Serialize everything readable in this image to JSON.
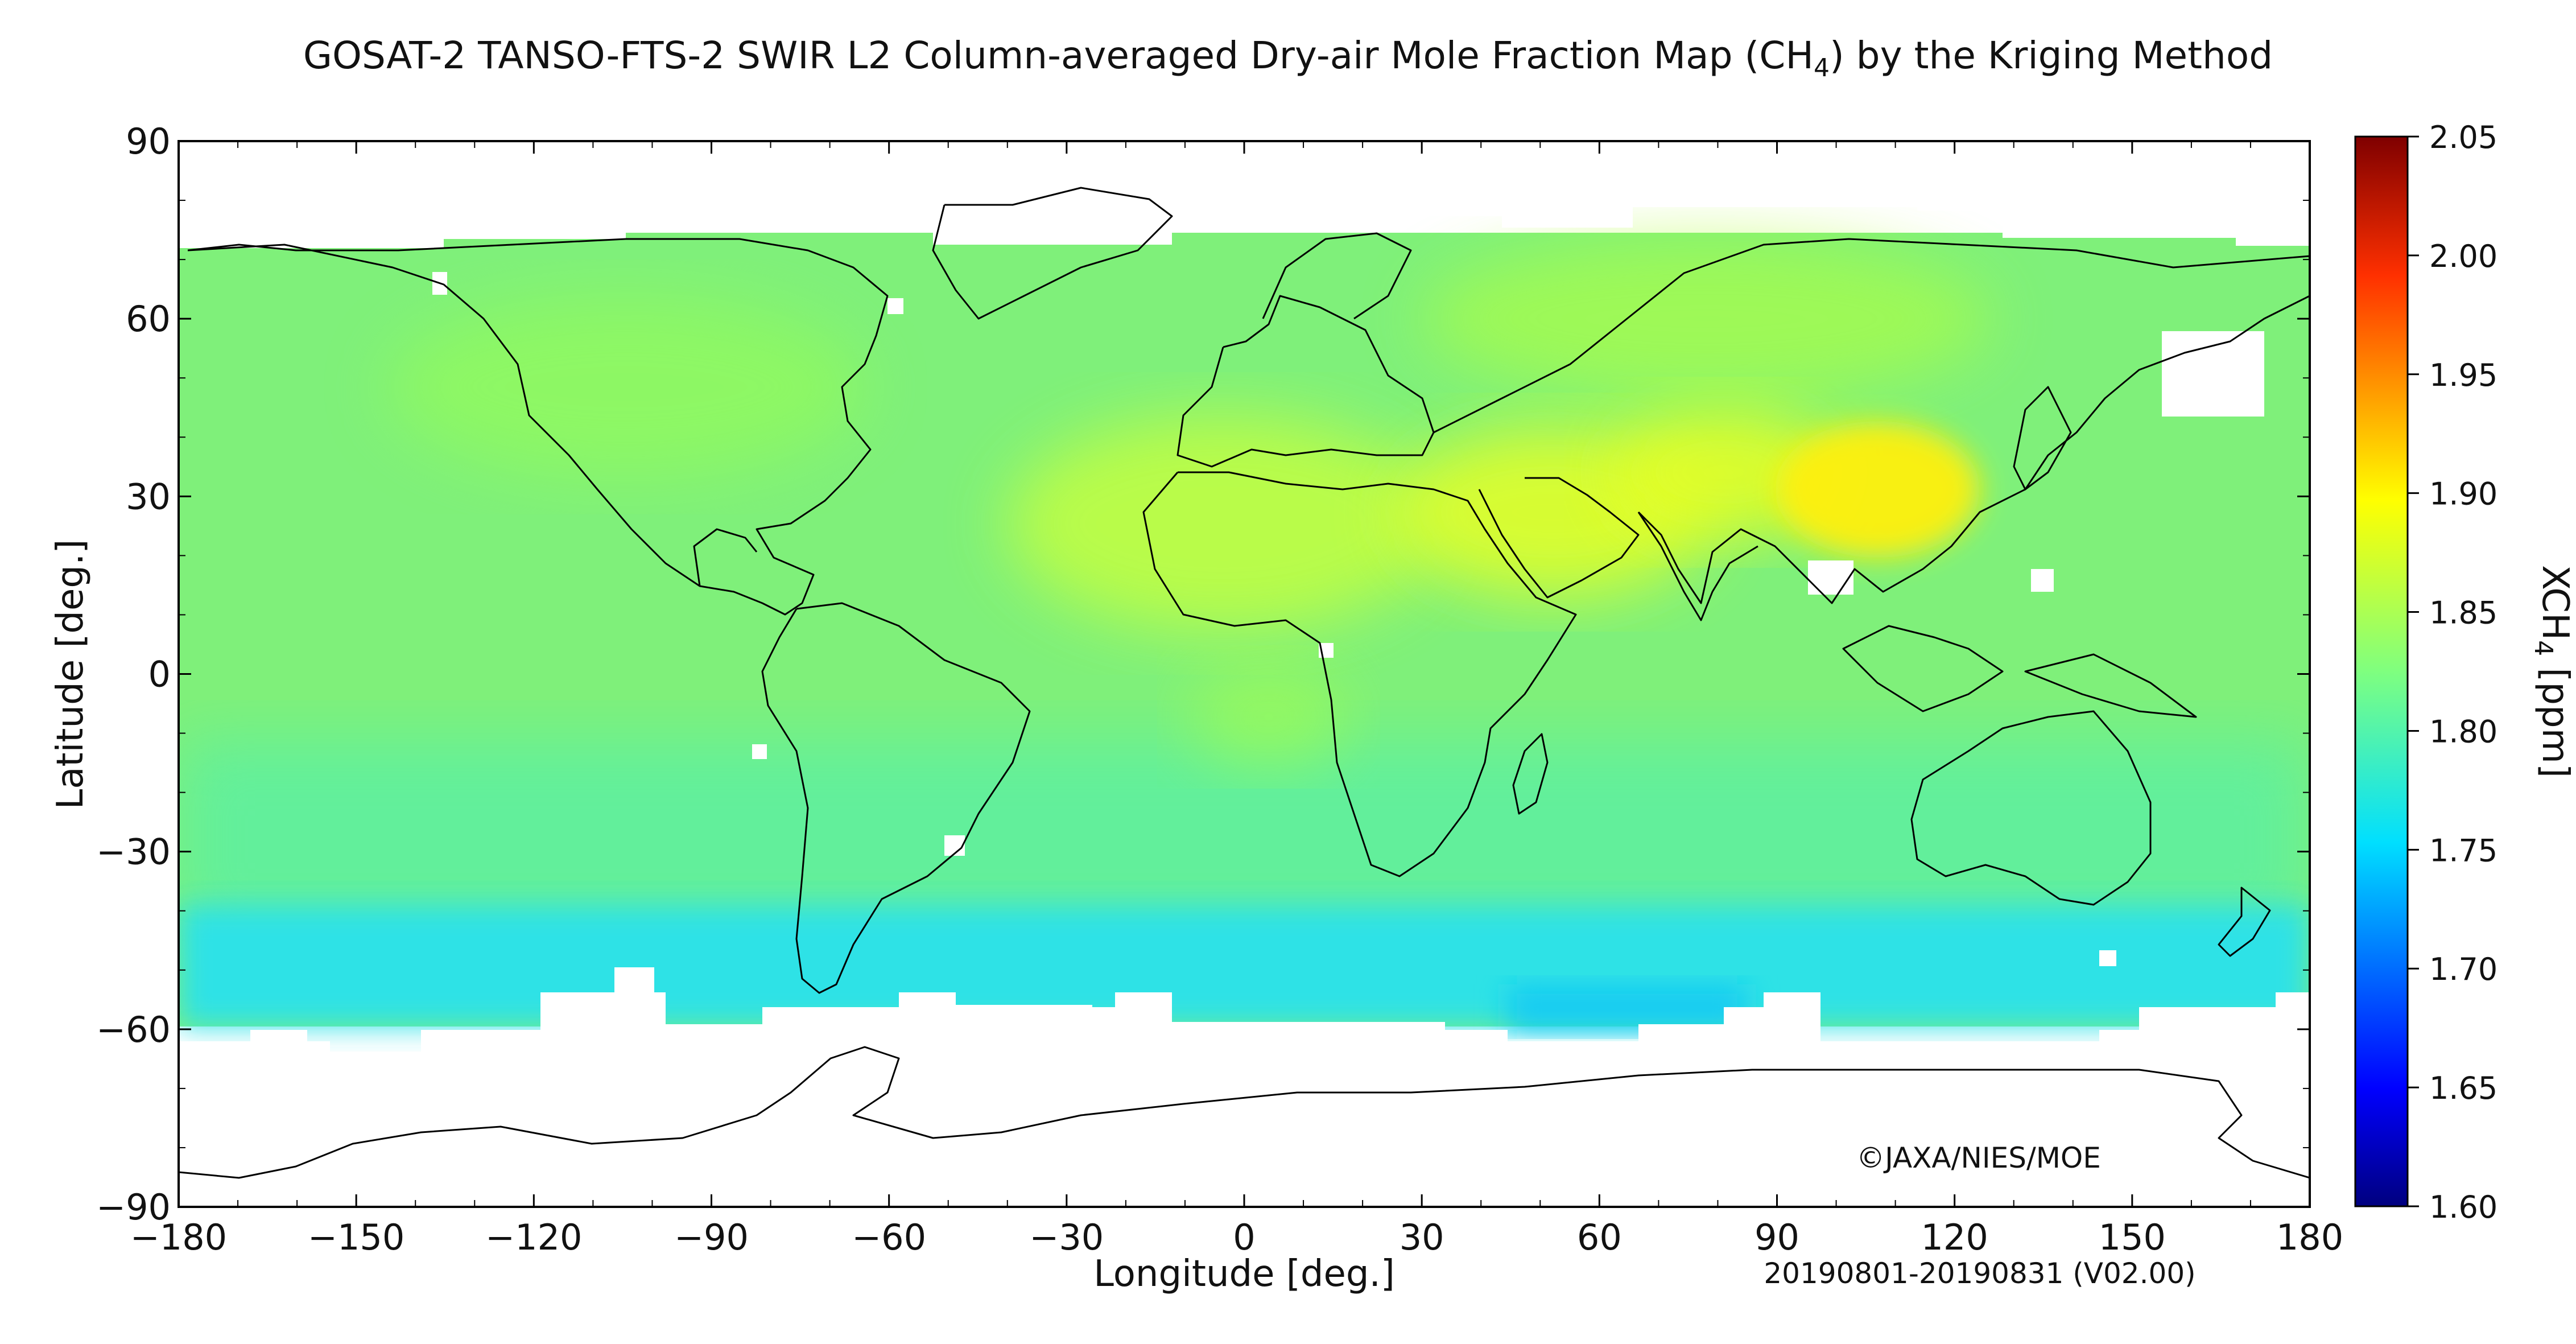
{
  "title": {
    "prefix": "GOSAT-2 TANSO-FTS-2 SWIR L2 Column-averaged Dry-air Mole Fraction Map (CH",
    "subscript": "4",
    "suffix": ") by the Kriging Method"
  },
  "map": {
    "type": "gridded-concentration-map",
    "projection": "equirectangular",
    "xlabel": "Longitude [deg.]",
    "ylabel": "Latitude [deg.]",
    "lon_range": [
      -180,
      180
    ],
    "lat_range": [
      -90,
      90
    ],
    "x_ticks": [
      "−180",
      "−150",
      "−120",
      "−90",
      "−60",
      "−30",
      "0",
      "30",
      "60",
      "90",
      "120",
      "150",
      "180"
    ],
    "y_ticks": [
      "90",
      "60",
      "30",
      "0",
      "−30",
      "−60",
      "−90"
    ],
    "data_coverage_lat": [
      -62,
      72
    ],
    "high_regions": [
      "East Asia",
      "South Asia",
      "Middle East",
      "North Africa"
    ],
    "low_regions": [
      "Southern Ocean"
    ]
  },
  "colorbar": {
    "label_prefix": "XCH",
    "label_sub": "4",
    "label_suffix": " [ppm]",
    "min": 1.6,
    "max": 2.05,
    "ticks": [
      "2.05",
      "2.00",
      "1.95",
      "1.90",
      "1.85",
      "1.80",
      "1.75",
      "1.70",
      "1.65",
      "1.60"
    ],
    "colors": [
      "#00007f",
      "#0000ff",
      "#007fff",
      "#00ffff",
      "#7fff7f",
      "#ffff00",
      "#ff7f00",
      "#ff0000",
      "#7f0000"
    ]
  },
  "credit": "©JAXA/NIES/MOE",
  "period": "20190801-20190831 (V02.00)"
}
